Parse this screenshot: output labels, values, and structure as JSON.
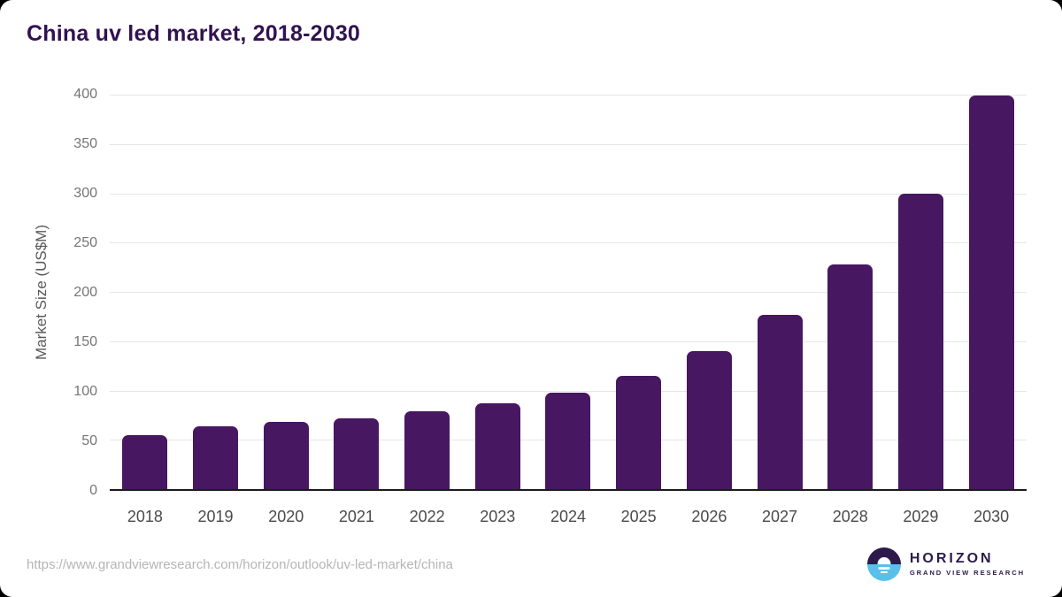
{
  "title": "China uv led market, 2018-2030",
  "chart_data": {
    "type": "bar",
    "title": "China uv led market, 2018-2030",
    "categories": [
      "2018",
      "2019",
      "2020",
      "2021",
      "2022",
      "2023",
      "2024",
      "2025",
      "2026",
      "2027",
      "2028",
      "2029",
      "2030"
    ],
    "values": [
      55,
      64,
      68,
      72,
      79,
      87,
      98,
      115,
      140,
      177,
      228,
      300,
      399
    ],
    "xlabel": "",
    "ylabel": "Market Size (US$M)",
    "ylim": [
      0,
      400
    ],
    "ytick_step": 50,
    "yticks": [
      0,
      50,
      100,
      150,
      200,
      250,
      300,
      350,
      400
    ],
    "grid": true,
    "legend": "none",
    "bar_color": "#471761"
  },
  "colors": {
    "title_text": "#311251",
    "bar": "#471761",
    "gridline": "#e6e6e6",
    "axis_line": "#1b1b1b",
    "tick_text": "#757575",
    "category_text": "#4a4a4a",
    "source_text": "#b5b5b5",
    "logo_purple": "#2d1a4a",
    "logo_blue": "#59c0ea"
  },
  "footer": {
    "source_url": "https://www.grandviewresearch.com/horizon/outlook/uv-led-market/china",
    "logo": {
      "name": "HORIZON",
      "subtitle": "GRAND VIEW RESEARCH"
    }
  }
}
